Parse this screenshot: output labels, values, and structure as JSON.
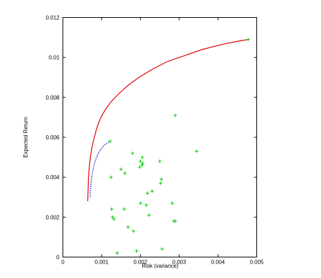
{
  "chart_data": {
    "type": "scatter",
    "xlabel": "Risk (variance)",
    "ylabel": "Expected Return",
    "xlim": [
      0,
      0.005
    ],
    "ylim": [
      0,
      0.012
    ],
    "x_ticks": [
      "0",
      "0.001",
      "0.002",
      "0.003",
      "0.004",
      "0.005"
    ],
    "y_ticks": [
      "0",
      "0.002",
      "0.004",
      "0.006",
      "0.008",
      "0.01",
      "0.012"
    ],
    "grid": false,
    "series": [
      {
        "kind": "line",
        "color": "#e00000",
        "dash": "solid",
        "x": [
          0.00064,
          0.00065,
          0.00066,
          0.00068,
          0.00071,
          0.00075,
          0.00081,
          0.00088,
          0.00098,
          0.0011,
          0.00125,
          0.00145,
          0.00168,
          0.00196,
          0.0023,
          0.0027,
          0.00315,
          0.0036,
          0.0041,
          0.00448,
          0.00478
        ],
        "y": [
          0.0028,
          0.0034,
          0.004,
          0.0045,
          0.005,
          0.0055,
          0.006,
          0.0065,
          0.007,
          0.0074,
          0.0078,
          0.0082,
          0.0086,
          0.009,
          0.0094,
          0.0098,
          0.0101,
          0.0104,
          0.01065,
          0.0108,
          0.0109
        ]
      },
      {
        "kind": "line",
        "color": "#0000cc",
        "dash": "dotted",
        "x": [
          0.0007,
          0.00071,
          0.00073,
          0.00076,
          0.0008,
          0.00085,
          0.00091,
          0.00098,
          0.00106,
          0.00114,
          0.00121
        ],
        "y": [
          0.003,
          0.0034,
          0.0038,
          0.0042,
          0.0046,
          0.0049,
          0.0052,
          0.0054,
          0.0056,
          0.0057,
          0.0058
        ]
      },
      {
        "kind": "points",
        "color": "#00cc00",
        "marker": "plus",
        "x": [
          0.00478,
          0.00122,
          0.00124,
          0.00126,
          0.00128,
          0.00132,
          0.0014,
          0.0015,
          0.00158,
          0.0016,
          0.00168,
          0.0018,
          0.00182,
          0.0019,
          0.00198,
          0.002,
          0.002,
          0.00204,
          0.00205,
          0.00206,
          0.00215,
          0.00218,
          0.00222,
          0.0023,
          0.0025,
          0.00252,
          0.00254,
          0.00256,
          0.00282,
          0.00286,
          0.0029,
          0.0029,
          0.00345
        ],
        "y": [
          0.0109,
          0.0058,
          0.004,
          0.0024,
          0.002,
          0.0019,
          0.0002,
          0.0044,
          0.0024,
          0.0042,
          0.0015,
          0.0052,
          0.0013,
          0.0003,
          0.0045,
          0.0027,
          0.0048,
          0.0046,
          0.005,
          0.0047,
          0.0026,
          0.0032,
          0.0021,
          0.0033,
          0.0048,
          0.0037,
          0.0039,
          0.0004,
          0.0027,
          0.0018,
          0.0071,
          0.0018,
          0.0053
        ]
      }
    ]
  }
}
